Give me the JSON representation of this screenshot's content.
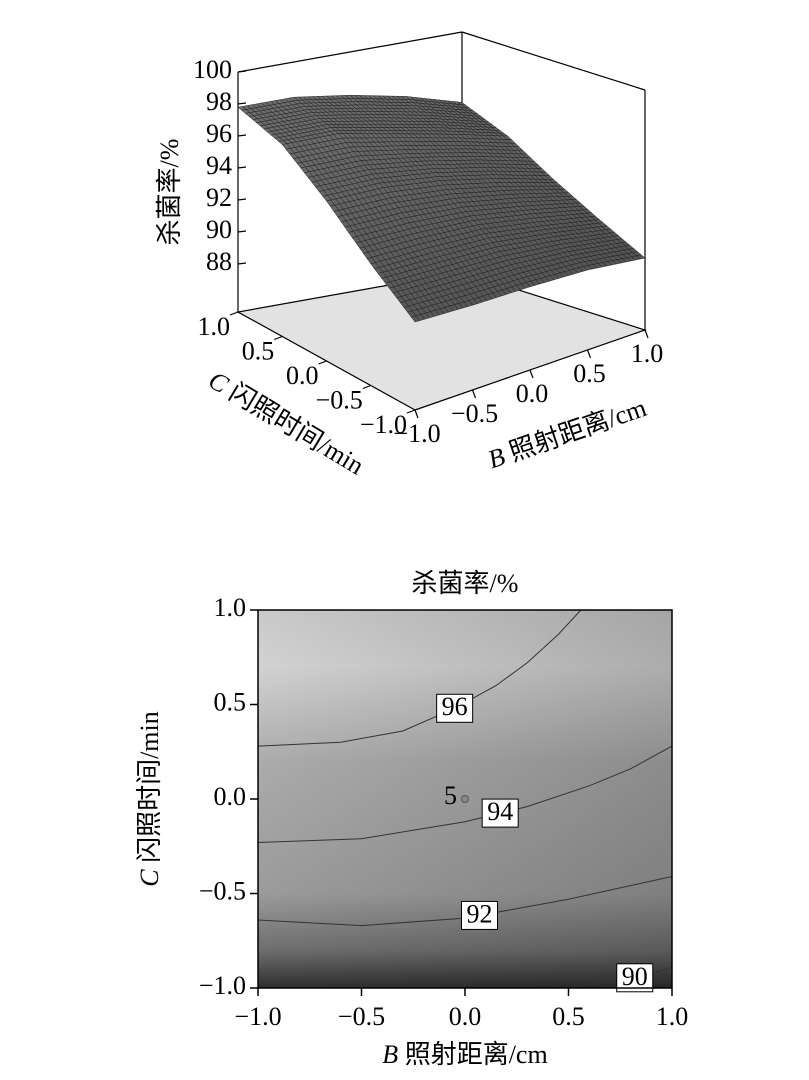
{
  "chart_data": [
    {
      "type": "surface",
      "zlabel": "杀菌率/%",
      "xlabel": {
        "var": "B",
        "text": "照射距离/cm"
      },
      "ylabel": {
        "var": "C",
        "text": "闪照时间/min"
      },
      "x": [
        -1,
        -0.5,
        0,
        0.5,
        1
      ],
      "y": [
        -1,
        -0.5,
        0,
        0.5,
        1
      ],
      "z": [
        [
          90.5,
          90.3,
          90.2,
          90.0,
          89.5
        ],
        [
          92.6,
          92.5,
          92.3,
          91.7,
          91.0
        ],
        [
          95.0,
          94.9,
          94.4,
          93.6,
          92.6
        ],
        [
          97.0,
          96.9,
          96.1,
          95.3,
          94.4
        ],
        [
          97.8,
          97.8,
          97.3,
          96.6,
          95.6
        ]
      ],
      "xlim": [
        -1,
        1
      ],
      "ylim": [
        -1,
        1
      ],
      "zlim": [
        85,
        100
      ],
      "xticks": [
        {
          "value": -1,
          "label": "−1.0"
        },
        {
          "value": -0.5,
          "label": "−0.5"
        },
        {
          "value": 0,
          "label": "0.0"
        },
        {
          "value": 0.5,
          "label": "0.5"
        },
        {
          "value": 1,
          "label": "1.0"
        }
      ],
      "yticks": [
        {
          "value": -1,
          "label": "−1.0"
        },
        {
          "value": -0.5,
          "label": "−0.5"
        },
        {
          "value": 0,
          "label": "0.0"
        },
        {
          "value": 0.5,
          "label": "0.5"
        },
        {
          "value": 1,
          "label": "1.0"
        }
      ],
      "zticks": [
        88,
        90,
        92,
        94,
        96,
        98,
        100
      ]
    },
    {
      "type": "contour",
      "title": "杀菌率/%",
      "xlabel": {
        "var": "B",
        "text": "照射距离/cm"
      },
      "ylabel": {
        "var": "C",
        "text": "闪照时间/min"
      },
      "xlim": [
        -1,
        1
      ],
      "ylim": [
        -1,
        1
      ],
      "xticks": [
        {
          "value": -1,
          "label": "−1.0"
        },
        {
          "value": -0.5,
          "label": "−0.5"
        },
        {
          "value": 0,
          "label": "0.0"
        },
        {
          "value": 0.5,
          "label": "0.5"
        },
        {
          "value": 1,
          "label": "1.0"
        }
      ],
      "yticks": [
        {
          "value": -1,
          "label": "−1.0"
        },
        {
          "value": -0.5,
          "label": "−0.5"
        },
        {
          "value": 0,
          "label": "0.0"
        },
        {
          "value": 0.5,
          "label": "0.5"
        },
        {
          "value": 1,
          "label": "1.0"
        }
      ],
      "contours": [
        {
          "level": 96,
          "x": [
            -1,
            -0.6,
            -0.3,
            -0.05,
            0.15,
            0.3,
            0.45,
            0.56
          ],
          "y": [
            0.28,
            0.3,
            0.36,
            0.48,
            0.6,
            0.72,
            0.87,
            1.0
          ]
        },
        {
          "level": 94,
          "x": [
            -1,
            -0.5,
            0,
            0.3,
            0.6,
            0.8,
            1
          ],
          "y": [
            -0.23,
            -0.21,
            -0.12,
            -0.04,
            0.07,
            0.16,
            0.28
          ]
        },
        {
          "level": 92,
          "x": [
            -1,
            -0.5,
            0,
            0.5,
            1
          ],
          "y": [
            -0.64,
            -0.67,
            -0.63,
            -0.53,
            -0.41
          ]
        },
        {
          "level": 90,
          "x": [
            0.49,
            0.7,
            0.85,
            1
          ],
          "y": [
            -1,
            -0.97,
            -0.94,
            -0.89
          ]
        }
      ],
      "design_point": {
        "x": 0,
        "y": 0,
        "label": 5
      }
    }
  ]
}
